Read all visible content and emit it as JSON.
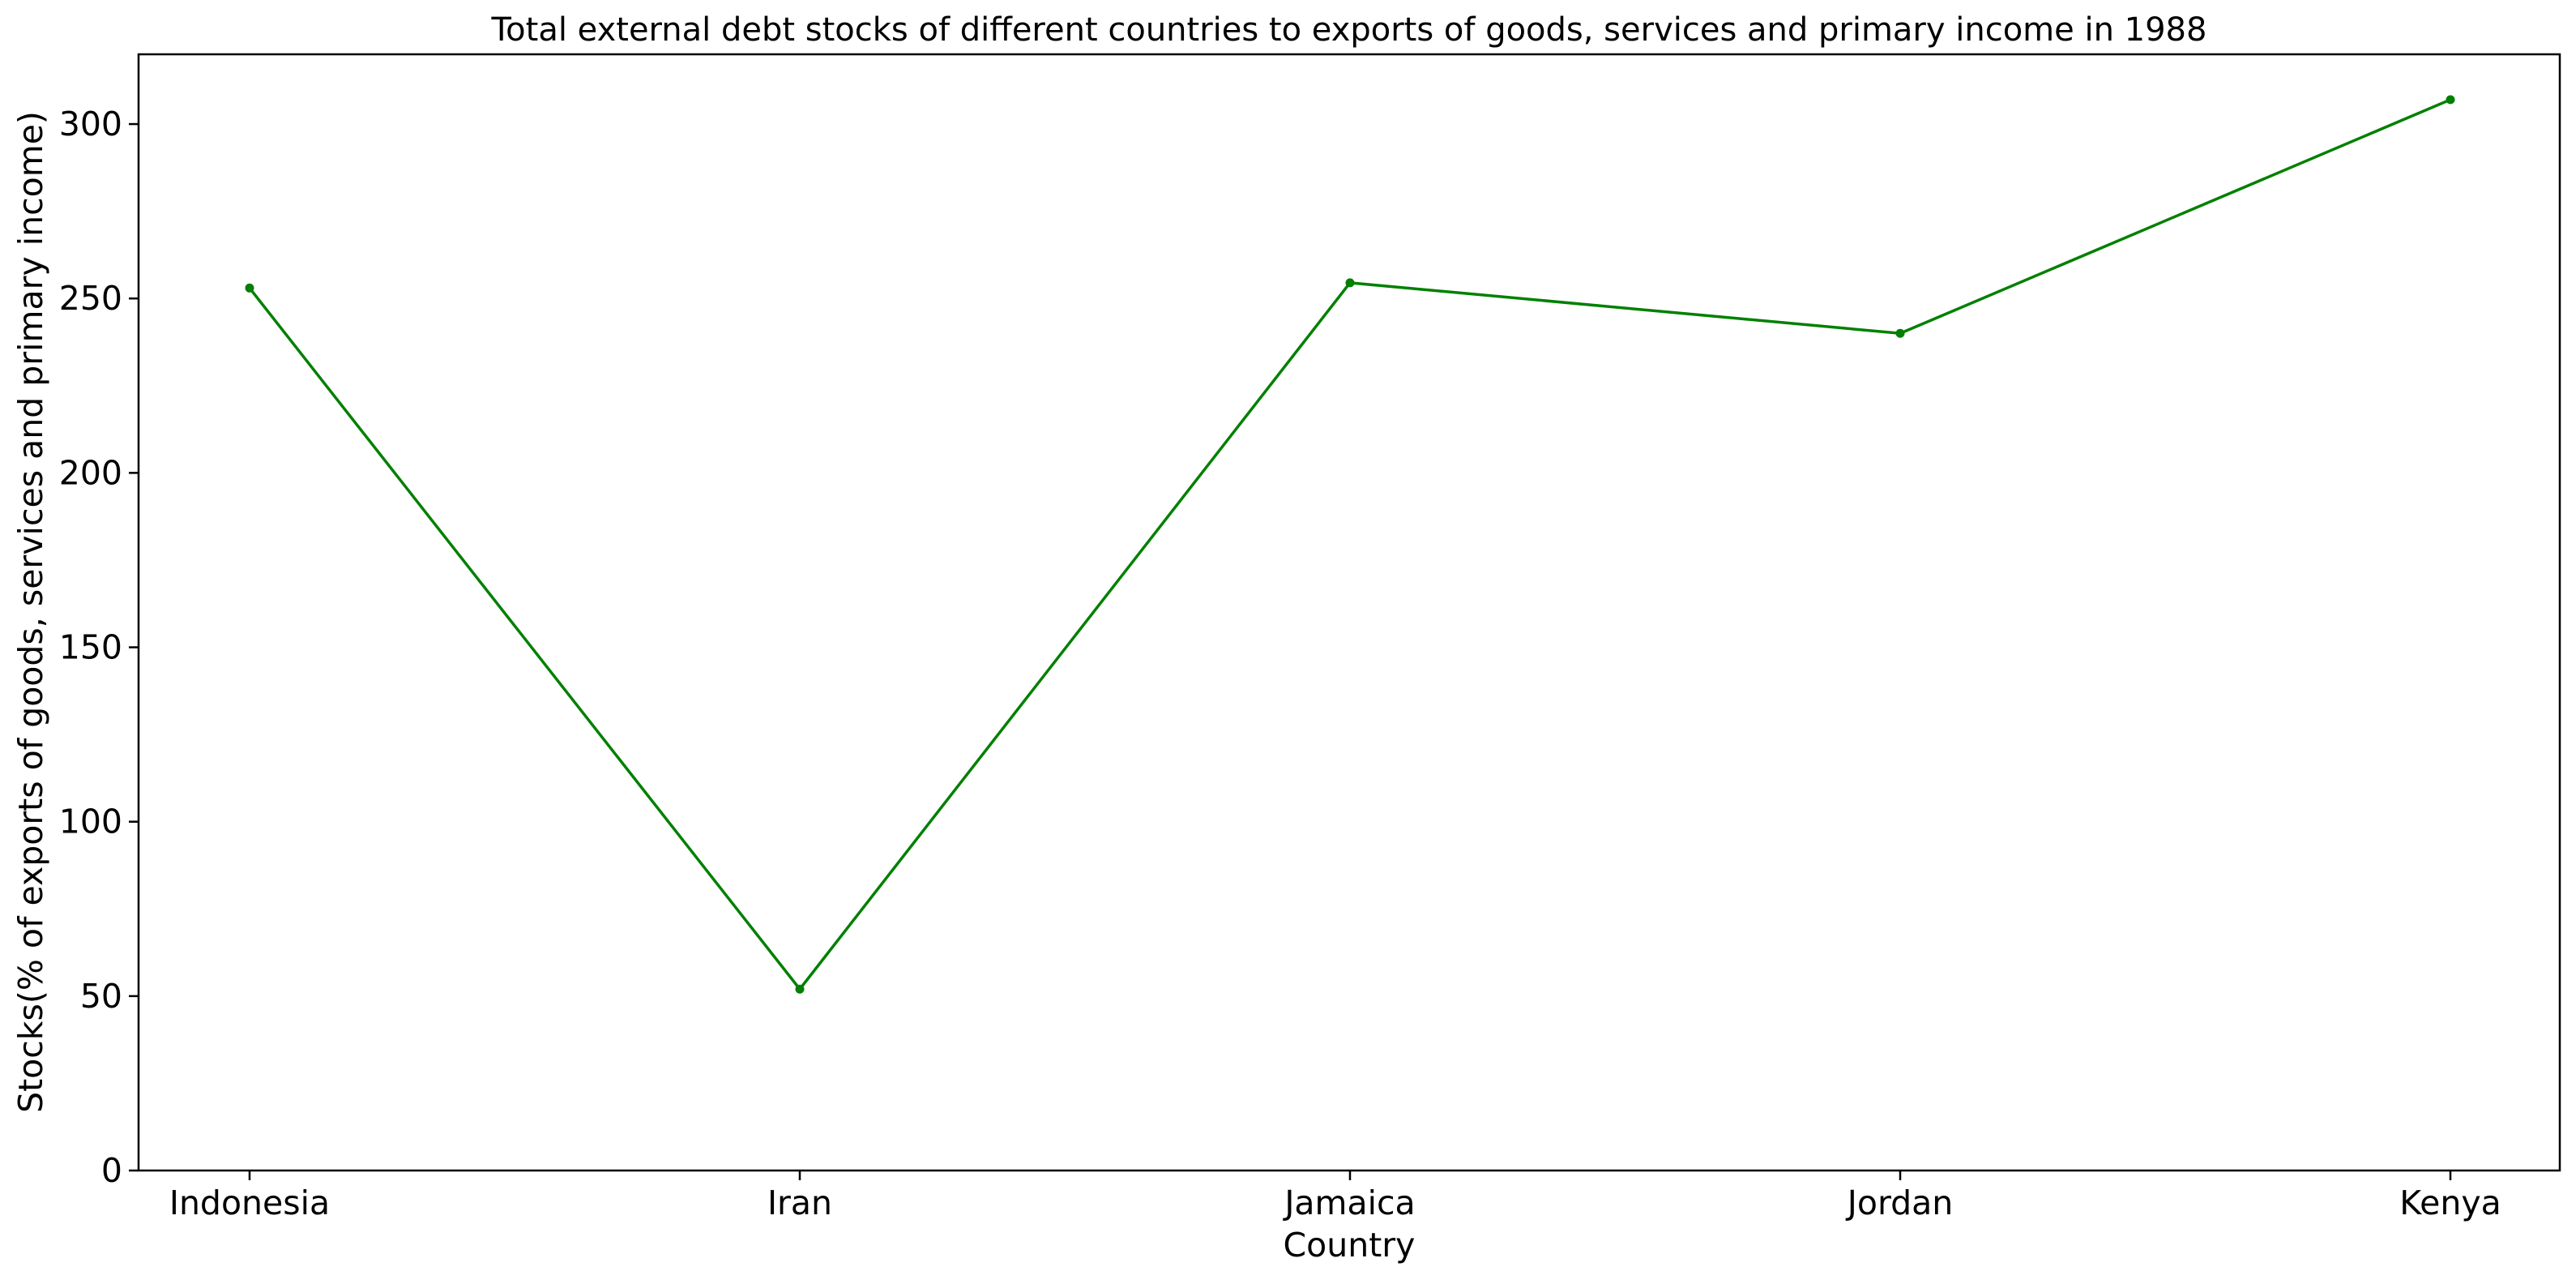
{
  "chart_data": {
    "type": "line",
    "title": "Total external debt stocks of different countries to exports of goods, services and primary income in 1988",
    "xlabel": "Country",
    "ylabel": "Stocks(% of exports of goods, services and primary income)",
    "categories": [
      "Indonesia",
      "Iran",
      "Jamaica",
      "Jordan",
      "Kenya"
    ],
    "series": [
      {
        "values": [
          253,
          52,
          254.5,
          240,
          307
        ]
      }
    ],
    "ylim": [
      0,
      320
    ],
    "yticks": [
      0,
      50,
      100,
      150,
      200,
      250,
      300
    ],
    "grid": false,
    "colors": {
      "line": "#008000",
      "axis": "#000000",
      "background": "#ffffff"
    }
  }
}
